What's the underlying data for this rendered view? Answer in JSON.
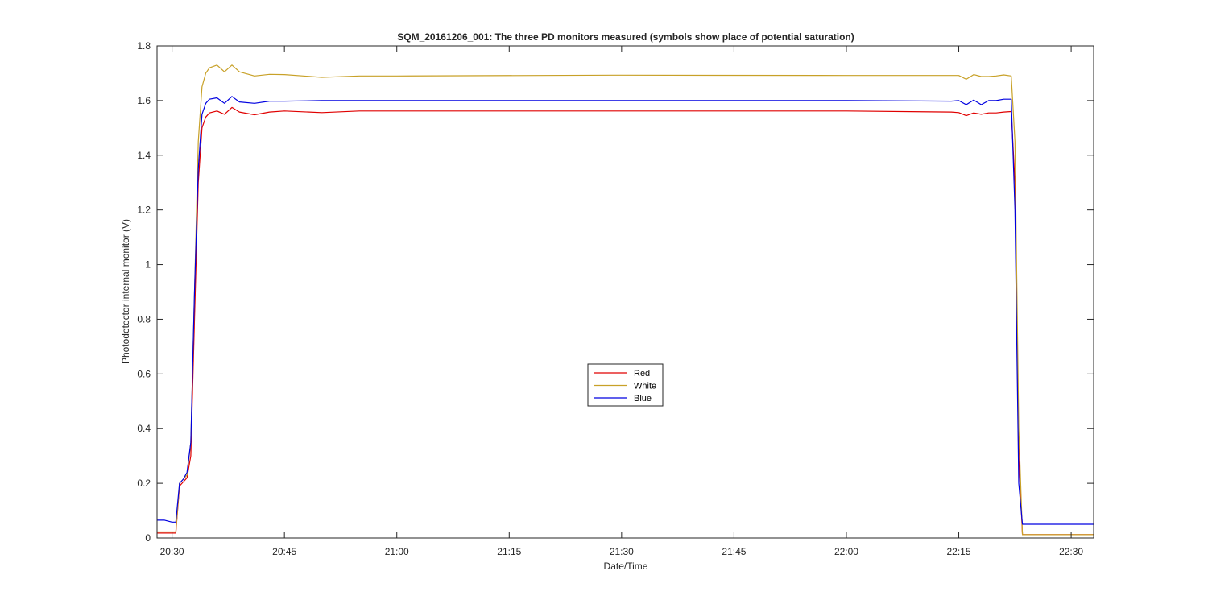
{
  "chart_data": {
    "type": "line",
    "title": "SQM_20161206_001: The three PD monitors measured (symbols show place of potential saturation)",
    "xlabel": "Date/Time",
    "ylabel": "Photodetector internal monitor (V)",
    "x_unit": "time (HH:MM)",
    "xlim": [
      "20:28",
      "22:33"
    ],
    "ylim": [
      0,
      1.8
    ],
    "xticks": [
      "20:30",
      "20:45",
      "21:00",
      "21:15",
      "21:30",
      "21:45",
      "22:00",
      "22:15",
      "22:30"
    ],
    "yticks": [
      "0",
      "0.2",
      "0.4",
      "0.6",
      "0.8",
      "1",
      "1.2",
      "1.4",
      "1.6",
      "1.8"
    ],
    "grid": false,
    "legend_position": "center",
    "series": [
      {
        "name": "Red",
        "color": "#e00000",
        "points": [
          [
            "20:28",
            0.018
          ],
          [
            "20:30",
            0.018
          ],
          [
            "20:30:30",
            0.018
          ],
          [
            "20:31",
            0.19
          ],
          [
            "20:31:30",
            0.205
          ],
          [
            "20:32",
            0.22
          ],
          [
            "20:32:30",
            0.3
          ],
          [
            "20:33",
            0.8
          ],
          [
            "20:33:30",
            1.3
          ],
          [
            "20:34",
            1.5
          ],
          [
            "20:34:30",
            1.54
          ],
          [
            "20:35",
            1.555
          ],
          [
            "20:36",
            1.562
          ],
          [
            "20:37",
            1.55
          ],
          [
            "20:38",
            1.575
          ],
          [
            "20:39",
            1.558
          ],
          [
            "20:41",
            1.548
          ],
          [
            "20:43",
            1.558
          ],
          [
            "20:45",
            1.562
          ],
          [
            "20:50",
            1.556
          ],
          [
            "20:55",
            1.562
          ],
          [
            "21:00",
            1.562
          ],
          [
            "21:30",
            1.562
          ],
          [
            "22:00",
            1.562
          ],
          [
            "22:14",
            1.558
          ],
          [
            "22:15",
            1.556
          ],
          [
            "22:16",
            1.545
          ],
          [
            "22:17",
            1.555
          ],
          [
            "22:18",
            1.55
          ],
          [
            "22:19",
            1.555
          ],
          [
            "22:20",
            1.555
          ],
          [
            "22:21",
            1.558
          ],
          [
            "22:22",
            1.56
          ],
          [
            "22:22:30",
            1.3
          ],
          [
            "22:23",
            0.3
          ],
          [
            "22:23:30",
            0.012
          ],
          [
            "22:33",
            0.012
          ]
        ]
      },
      {
        "name": "White",
        "color": "#c8a128",
        "points": [
          [
            "20:28",
            0.022
          ],
          [
            "20:30",
            0.022
          ],
          [
            "20:30:30",
            0.022
          ],
          [
            "20:31",
            0.2
          ],
          [
            "20:31:30",
            0.215
          ],
          [
            "20:32",
            0.23
          ],
          [
            "20:32:30",
            0.35
          ],
          [
            "20:33",
            0.9
          ],
          [
            "20:33:30",
            1.45
          ],
          [
            "20:34",
            1.65
          ],
          [
            "20:34:30",
            1.7
          ],
          [
            "20:35",
            1.72
          ],
          [
            "20:36",
            1.73
          ],
          [
            "20:37",
            1.705
          ],
          [
            "20:38",
            1.73
          ],
          [
            "20:39",
            1.705
          ],
          [
            "20:41",
            1.69
          ],
          [
            "20:43",
            1.696
          ],
          [
            "20:45",
            1.695
          ],
          [
            "20:50",
            1.685
          ],
          [
            "20:55",
            1.69
          ],
          [
            "21:00",
            1.69
          ],
          [
            "21:30",
            1.693
          ],
          [
            "22:00",
            1.692
          ],
          [
            "22:14",
            1.692
          ],
          [
            "22:15",
            1.692
          ],
          [
            "22:16",
            1.678
          ],
          [
            "22:17",
            1.695
          ],
          [
            "22:18",
            1.688
          ],
          [
            "22:19",
            1.688
          ],
          [
            "22:20",
            1.69
          ],
          [
            "22:21",
            1.694
          ],
          [
            "22:22",
            1.69
          ],
          [
            "22:22:30",
            1.45
          ],
          [
            "22:23",
            0.4
          ],
          [
            "22:23:30",
            0.012
          ],
          [
            "22:33",
            0.012
          ]
        ]
      },
      {
        "name": "Blue",
        "color": "#0000e0",
        "points": [
          [
            "20:28",
            0.065
          ],
          [
            "20:29",
            0.065
          ],
          [
            "20:30",
            0.058
          ],
          [
            "20:30:30",
            0.058
          ],
          [
            "20:31",
            0.2
          ],
          [
            "20:31:30",
            0.215
          ],
          [
            "20:32",
            0.24
          ],
          [
            "20:32:30",
            0.35
          ],
          [
            "20:33",
            0.9
          ],
          [
            "20:33:30",
            1.35
          ],
          [
            "20:34",
            1.55
          ],
          [
            "20:34:30",
            1.59
          ],
          [
            "20:35",
            1.605
          ],
          [
            "20:36",
            1.61
          ],
          [
            "20:37",
            1.59
          ],
          [
            "20:38",
            1.615
          ],
          [
            "20:39",
            1.595
          ],
          [
            "20:41",
            1.59
          ],
          [
            "20:43",
            1.598
          ],
          [
            "20:45",
            1.598
          ],
          [
            "20:50",
            1.6
          ],
          [
            "20:55",
            1.6
          ],
          [
            "21:00",
            1.6
          ],
          [
            "21:30",
            1.6
          ],
          [
            "22:00",
            1.6
          ],
          [
            "22:14",
            1.598
          ],
          [
            "22:15",
            1.6
          ],
          [
            "22:16",
            1.585
          ],
          [
            "22:17",
            1.602
          ],
          [
            "22:18",
            1.585
          ],
          [
            "22:19",
            1.6
          ],
          [
            "22:20",
            1.6
          ],
          [
            "22:21",
            1.605
          ],
          [
            "22:22",
            1.605
          ],
          [
            "22:22:30",
            1.2
          ],
          [
            "22:23",
            0.2
          ],
          [
            "22:23:30",
            0.05
          ],
          [
            "22:33",
            0.05
          ]
        ]
      }
    ]
  }
}
